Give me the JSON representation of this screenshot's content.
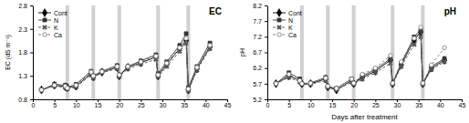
{
  "chart_data": [
    {
      "type": "line",
      "title": "EC",
      "y_label": "EC (dS m⁻¹)",
      "x": [
        2,
        5,
        7.5,
        8,
        10,
        13.5,
        14,
        16,
        19.5,
        20,
        22,
        25,
        28.5,
        29,
        31,
        34,
        35.5,
        36,
        38,
        41
      ],
      "xlim": [
        0,
        45
      ],
      "xticks": [
        0,
        5,
        10,
        15,
        20,
        25,
        30,
        35,
        40,
        45
      ],
      "ylim": [
        0.8,
        2.8
      ],
      "yticks": [
        0.8,
        1.3,
        1.8,
        2.3,
        2.8
      ],
      "legend": "upper left",
      "reference_lines": [
        8,
        14,
        20,
        29,
        36
      ],
      "series": [
        {
          "name": "Cont",
          "color": "#000000",
          "marker": "diamond",
          "line_style": "solid",
          "values": [
            1.0,
            1.1,
            1.07,
            1.05,
            1.08,
            1.35,
            1.28,
            1.38,
            1.48,
            1.3,
            1.48,
            1.58,
            1.7,
            1.3,
            1.55,
            1.88,
            2.05,
            1.0,
            1.45,
            1.92
          ]
        },
        {
          "name": "N",
          "color": "#333333",
          "marker": "square",
          "line_style": "solid",
          "values": [
            1.0,
            1.12,
            1.1,
            1.05,
            1.12,
            1.4,
            1.3,
            1.4,
            1.52,
            1.3,
            1.5,
            1.62,
            1.75,
            1.35,
            1.6,
            1.95,
            2.2,
            1.05,
            1.5,
            2.0
          ]
        },
        {
          "name": "K",
          "color": "#555555",
          "marker": "x",
          "line_style": "dashed",
          "values": [
            1.0,
            1.08,
            1.05,
            1.02,
            1.06,
            1.32,
            1.25,
            1.37,
            1.45,
            1.28,
            1.45,
            1.55,
            1.65,
            1.28,
            1.5,
            1.82,
            2.0,
            0.98,
            1.42,
            1.88
          ]
        },
        {
          "name": "Ca",
          "color": "#777777",
          "marker": "circle",
          "line_style": "dashed",
          "values": [
            1.0,
            1.1,
            1.08,
            1.04,
            1.1,
            1.38,
            1.3,
            1.39,
            1.5,
            1.32,
            1.5,
            1.6,
            1.72,
            1.32,
            1.57,
            1.9,
            2.1,
            1.02,
            1.48,
            1.95
          ]
        }
      ]
    },
    {
      "type": "line",
      "title": "pH",
      "y_label": "pH",
      "x_label": "Days after treatment",
      "x": [
        2,
        5,
        7.5,
        8,
        10,
        13.5,
        14,
        16,
        19.5,
        20,
        22,
        25,
        28.5,
        29,
        31,
        34,
        35.5,
        36,
        38,
        41
      ],
      "xlim": [
        0,
        45
      ],
      "xticks": [
        0,
        5,
        10,
        15,
        20,
        25,
        30,
        35,
        40,
        45
      ],
      "ylim": [
        5.2,
        8.2
      ],
      "yticks": [
        5.2,
        5.7,
        6.2,
        6.7,
        7.2,
        7.7,
        8.2
      ],
      "legend": "upper left",
      "reference_lines": [
        8,
        14,
        20,
        29,
        36
      ],
      "series": [
        {
          "name": "Cont",
          "color": "#000000",
          "marker": "diamond",
          "line_style": "solid",
          "values": [
            5.7,
            5.95,
            5.8,
            5.7,
            5.7,
            5.85,
            5.6,
            5.5,
            5.8,
            5.7,
            5.9,
            6.1,
            6.45,
            5.7,
            6.3,
            7.1,
            7.35,
            5.7,
            6.2,
            6.45
          ]
        },
        {
          "name": "N",
          "color": "#333333",
          "marker": "square",
          "line_style": "solid",
          "values": [
            5.7,
            6.05,
            5.85,
            5.7,
            5.72,
            5.9,
            5.6,
            5.55,
            5.85,
            5.7,
            5.95,
            6.15,
            6.5,
            5.7,
            6.35,
            7.2,
            7.4,
            5.7,
            6.25,
            6.5
          ]
        },
        {
          "name": "K",
          "color": "#555555",
          "marker": "x",
          "line_style": "dashed",
          "values": [
            5.7,
            5.9,
            5.75,
            5.68,
            5.68,
            5.8,
            5.58,
            5.5,
            5.75,
            5.68,
            5.85,
            6.05,
            6.35,
            5.68,
            6.25,
            6.95,
            7.2,
            5.68,
            6.15,
            6.4
          ]
        },
        {
          "name": "Ca",
          "color": "#777777",
          "marker": "circle",
          "line_style": "dashed",
          "values": [
            5.7,
            6.0,
            5.8,
            5.7,
            5.72,
            5.88,
            5.62,
            5.55,
            5.85,
            5.72,
            6.0,
            6.2,
            6.6,
            5.72,
            6.4,
            7.15,
            7.5,
            5.72,
            6.3,
            6.85
          ]
        }
      ]
    }
  ]
}
